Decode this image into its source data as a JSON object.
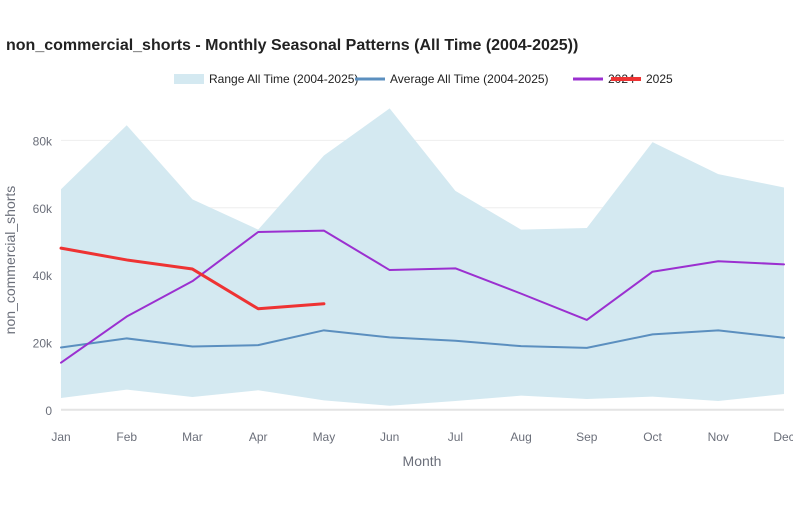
{
  "chart_data": {
    "type": "line",
    "title": "non_commercial_shorts - Monthly Seasonal Patterns (All Time (2004-2025))",
    "xlabel": "Month",
    "ylabel": "non_commercial_shorts",
    "categories": [
      "Jan",
      "Feb",
      "Mar",
      "Apr",
      "May",
      "Jun",
      "Jul",
      "Aug",
      "Sep",
      "Oct",
      "Nov",
      "Dec"
    ],
    "ylim": [
      -6000,
      92000
    ],
    "yticks": [
      0,
      20000,
      40000,
      60000,
      80000
    ],
    "ytick_labels": [
      "0",
      "20k",
      "40k",
      "60k",
      "80k"
    ],
    "grid": true,
    "legend_position": "top",
    "range": {
      "name": "Range All Time (2004-2025)",
      "color": "#d4e9f1",
      "min": [
        3500,
        6000,
        3800,
        5800,
        2800,
        1200,
        2600,
        4200,
        3200,
        3900,
        2600,
        4700
      ],
      "max": [
        65500,
        84500,
        62500,
        53500,
        75500,
        89500,
        65000,
        53500,
        54000,
        79500,
        70000,
        66000
      ]
    },
    "series": [
      {
        "name": "Average All Time (2004-2025)",
        "color": "#5b8fbf",
        "width": 2,
        "values": [
          18500,
          21200,
          18800,
          19200,
          23600,
          21500,
          20500,
          18900,
          18400,
          22400,
          23600,
          21400
        ]
      },
      {
        "name": "2024",
        "color": "#9b30d0",
        "width": 2,
        "values": [
          14000,
          27700,
          38200,
          52800,
          53200,
          41500,
          42000,
          34500,
          26700,
          41000,
          44100,
          43200
        ]
      },
      {
        "name": "2025",
        "color": "#ee3333",
        "width": 3,
        "values": [
          48000,
          44500,
          41800,
          30000,
          31500,
          null,
          null,
          null,
          null,
          null,
          null,
          null
        ]
      }
    ]
  }
}
